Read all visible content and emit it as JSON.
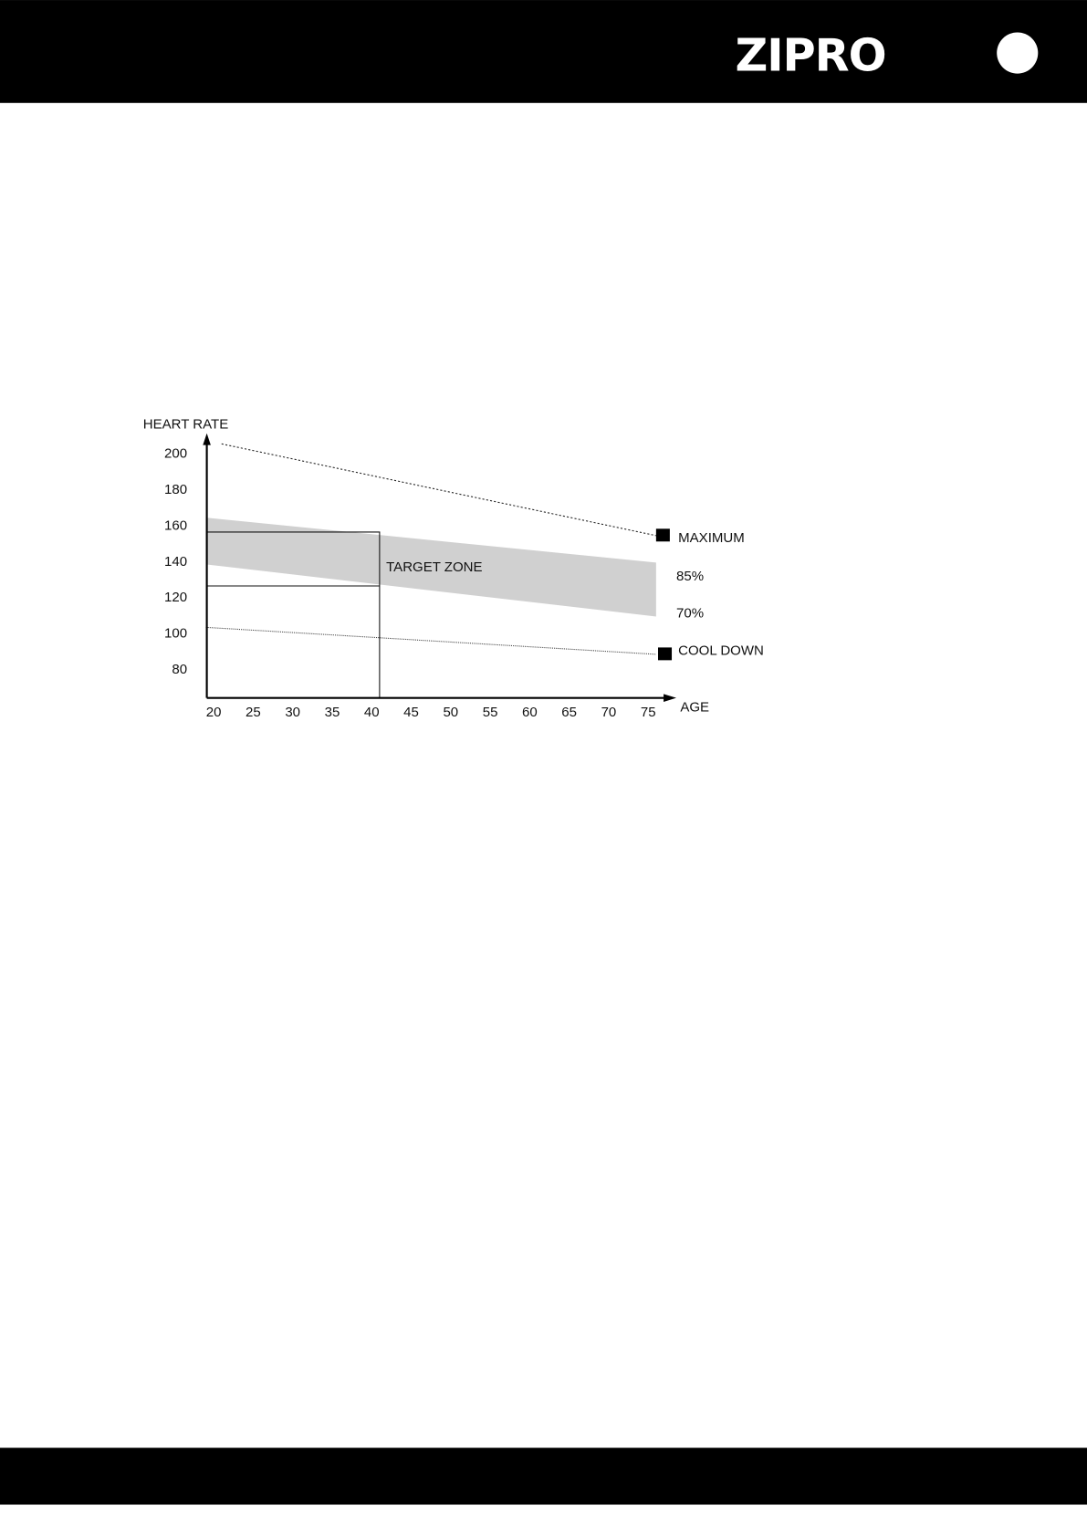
{
  "header": {
    "logo": "ZIPRO",
    "bar_color": "#000000"
  },
  "footer": {
    "bar_color": "#000000"
  },
  "chart_data": {
    "type": "line",
    "ylabel": "HEART RATE",
    "xlabel": "AGE",
    "y_ticks": [
      "200",
      "180",
      "160",
      "140",
      "120",
      "100",
      "80"
    ],
    "x_ticks": [
      "20",
      "25",
      "30",
      "35",
      "40",
      "45",
      "50",
      "55",
      "60",
      "65",
      "70",
      "75"
    ],
    "xlim": [
      19,
      78
    ],
    "ylim": [
      65,
      210
    ],
    "series": [
      {
        "name": "MAXIMUM",
        "style": "dotted",
        "points": [
          [
            21,
            205
          ],
          [
            76,
            154
          ]
        ]
      },
      {
        "name": "85%",
        "points": [
          [
            19,
            164
          ],
          [
            76,
            139
          ]
        ]
      },
      {
        "name": "70%",
        "points": [
          [
            19,
            138
          ],
          [
            76,
            109
          ]
        ]
      },
      {
        "name": "COOL DOWN",
        "style": "dotted",
        "points": [
          [
            19,
            103
          ],
          [
            76,
            88
          ]
        ]
      }
    ],
    "band": {
      "label": "TARGET ZONE",
      "color": "#d0d0d0"
    },
    "example": {
      "age": 41,
      "upper": 156,
      "lower": 126
    }
  }
}
